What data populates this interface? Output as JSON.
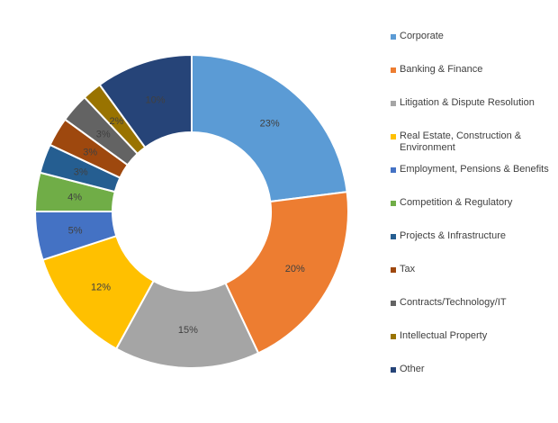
{
  "chart_data": {
    "type": "pie",
    "subtype": "donut",
    "title": "",
    "legend_position": "right",
    "categories": [
      "Corporate",
      "Banking & Finance",
      "Litigation & Dispute Resolution",
      "Real Estate, Construction & Environment",
      "Employment, Pensions & Benefits",
      "Competition & Regulatory",
      "Projects & Infrastructure",
      "Tax",
      "Contracts/Technology/IT",
      "Intellectual Property",
      "Other"
    ],
    "values": [
      23,
      20,
      15,
      12,
      5,
      4,
      3,
      3,
      3,
      2,
      10
    ],
    "labels": [
      "23%",
      "20%",
      "15%",
      "12%",
      "5%",
      "4%",
      "3%",
      "3%",
      "3%",
      "2%",
      "10%"
    ],
    "colors": [
      "#5B9BD5",
      "#ED7D31",
      "#A5A5A5",
      "#FFC000",
      "#4472C4",
      "#70AD47",
      "#255E91",
      "#9E480E",
      "#636363",
      "#997300",
      "#264478"
    ]
  }
}
